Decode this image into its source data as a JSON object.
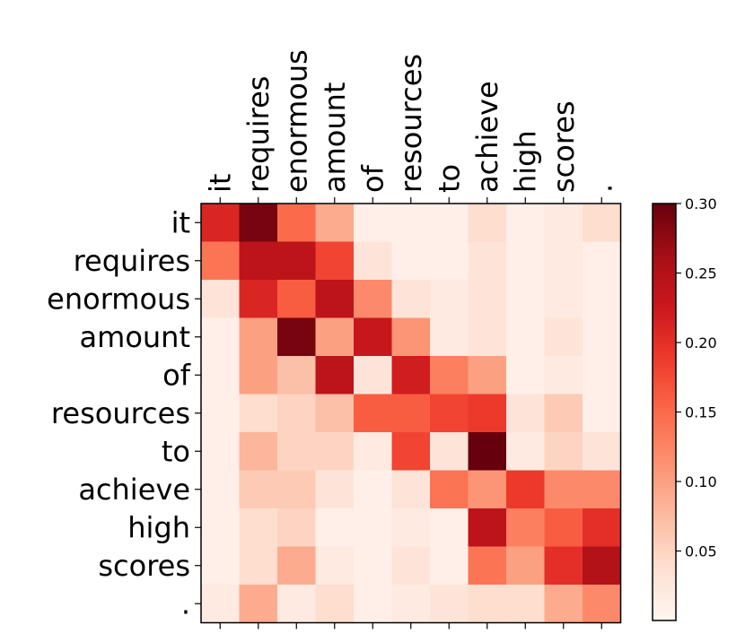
{
  "chart_data": {
    "type": "heatmap",
    "title": "",
    "xlabel": "",
    "ylabel": "",
    "x_tokens": [
      "it",
      "requires",
      "enormous",
      "amount",
      "of",
      "resources",
      "to",
      "achieve",
      "high",
      "scores",
      "."
    ],
    "y_tokens": [
      "it",
      "requires",
      "enormous",
      "amount",
      "of",
      "resources",
      "to",
      "achieve",
      "high",
      "scores",
      "."
    ],
    "colormap": "Reds",
    "vmin": 0.0,
    "vmax": 0.3,
    "colorbar_ticks": [
      0.05,
      0.1,
      0.15,
      0.2,
      0.25,
      0.3
    ],
    "colorbar_tick_labels": [
      "0.05",
      "0.10",
      "0.15",
      "0.20",
      "0.25",
      "0.30"
    ],
    "matrix": [
      [
        0.21,
        0.29,
        0.15,
        0.09,
        0.01,
        0.01,
        0.01,
        0.04,
        0.01,
        0.02,
        0.04
      ],
      [
        0.14,
        0.24,
        0.24,
        0.18,
        0.03,
        0.01,
        0.01,
        0.03,
        0.01,
        0.02,
        0.01
      ],
      [
        0.03,
        0.21,
        0.16,
        0.24,
        0.12,
        0.03,
        0.02,
        0.03,
        0.01,
        0.02,
        0.01
      ],
      [
        0.01,
        0.1,
        0.29,
        0.1,
        0.23,
        0.11,
        0.02,
        0.03,
        0.01,
        0.03,
        0.01
      ],
      [
        0.01,
        0.1,
        0.07,
        0.24,
        0.03,
        0.22,
        0.13,
        0.1,
        0.01,
        0.02,
        0.01
      ],
      [
        0.01,
        0.04,
        0.05,
        0.07,
        0.16,
        0.16,
        0.18,
        0.19,
        0.03,
        0.06,
        0.01
      ],
      [
        0.01,
        0.08,
        0.05,
        0.05,
        0.02,
        0.18,
        0.03,
        0.3,
        0.02,
        0.05,
        0.03
      ],
      [
        0.01,
        0.06,
        0.06,
        0.03,
        0.01,
        0.03,
        0.14,
        0.11,
        0.19,
        0.12,
        0.12
      ],
      [
        0.01,
        0.04,
        0.05,
        0.01,
        0.01,
        0.02,
        0.01,
        0.24,
        0.13,
        0.16,
        0.2
      ],
      [
        0.01,
        0.04,
        0.09,
        0.02,
        0.01,
        0.03,
        0.01,
        0.14,
        0.1,
        0.2,
        0.25
      ],
      [
        0.02,
        0.09,
        0.02,
        0.04,
        0.01,
        0.02,
        0.03,
        0.04,
        0.04,
        0.09,
        0.12
      ]
    ]
  }
}
